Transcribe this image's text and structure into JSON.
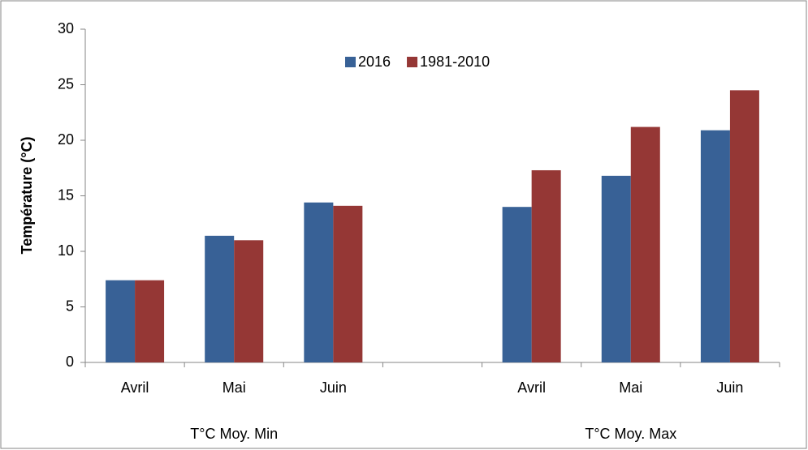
{
  "chart_data": {
    "type": "bar",
    "y_label": "Température (°C)",
    "categories": [
      "Avril",
      "Mai",
      "Juin",
      null,
      "Avril",
      "Mai",
      "Juin"
    ],
    "group_labels": [
      "T°C Moy. Min",
      "T°C Moy. Max"
    ],
    "series": [
      {
        "name": "2016",
        "color": "#386196",
        "values": [
          7.4,
          11.4,
          14.4,
          null,
          14.0,
          16.8,
          20.9
        ]
      },
      {
        "name": "1981-2010",
        "color": "#953735",
        "values": [
          7.4,
          11.0,
          14.1,
          null,
          17.3,
          21.2,
          24.5
        ]
      }
    ],
    "ylim": [
      0,
      30
    ],
    "yticks": [
      0,
      5,
      10,
      15,
      20,
      25,
      30
    ],
    "grid": false,
    "legend": "top"
  }
}
